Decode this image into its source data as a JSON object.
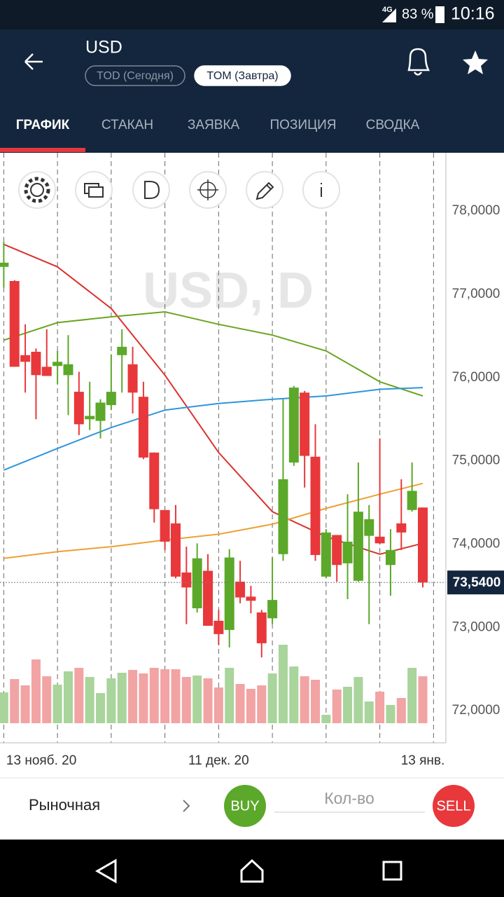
{
  "status_bar": {
    "network": "4G",
    "battery": "83 %",
    "time": "10:16"
  },
  "header": {
    "title": "USD",
    "modes": [
      "TOD (Сегодня)",
      "TOM (Завтра)"
    ],
    "active_mode": 1
  },
  "tabs": {
    "items": [
      "ГРАФИК",
      "СТАКАН",
      "ЗАЯВКА",
      "ПОЗИЦИЯ",
      "СВОДКА"
    ],
    "active": 0
  },
  "chart_data": {
    "type": "candlestick",
    "watermark": "USD, D",
    "open": [
      77.33,
      77.16,
      76.27,
      76.31,
      76.13,
      76.14,
      76.03,
      75.83,
      75.5,
      75.48,
      75.67,
      76.27,
      76.16,
      75.77,
      75.1,
      74.41,
      74.25,
      73.66,
      73.23,
      73.68,
      73.08,
      72.97,
      73.55,
      73.37,
      73.18,
      73.11,
      73.88,
      74.98,
      75.82,
      75.05,
      73.61,
      74.11,
      73.77,
      73.56,
      74.1,
      74.09,
      73.75,
      74.25,
      74.41,
      74.44
    ],
    "high": [
      77.63,
      77.17,
      76.64,
      76.35,
      76.58,
      76.32,
      76.51,
      76.07,
      75.95,
      75.74,
      76.28,
      76.58,
      76.37,
      75.95,
      75.1,
      74.41,
      74.47,
      73.97,
      74.01,
      73.88,
      73.21,
      73.94,
      73.8,
      73.5,
      73.21,
      73.84,
      75.74,
      75.9,
      75.84,
      75.44,
      74.18,
      74.11,
      74.6,
      74.98,
      74.47,
      75.27,
      74.18,
      74.78,
      74.98,
      74.44
    ],
    "low": [
      77.08,
      76.13,
      75.82,
      75.5,
      76.02,
      75.92,
      75.55,
      75.31,
      75.37,
      75.27,
      75.61,
      75.82,
      75.57,
      75.02,
      74.26,
      73.93,
      73.59,
      73.04,
      73.18,
      73.02,
      72.79,
      72.76,
      73.29,
      73.17,
      72.64,
      73.04,
      73.8,
      74.94,
      74.68,
      73.8,
      73.59,
      73.55,
      73.34,
      73.55,
      73.04,
      74.0,
      73.38,
      73.93,
      74.39,
      73.48
    ],
    "close": [
      77.38,
      76.13,
      76.19,
      76.03,
      76.02,
      76.19,
      76.16,
      75.44,
      75.54,
      75.7,
      75.83,
      76.37,
      75.82,
      75.04,
      74.42,
      74.03,
      73.61,
      73.48,
      73.83,
      73.02,
      72.92,
      73.84,
      73.36,
      73.32,
      72.81,
      73.33,
      74.78,
      75.88,
      75.06,
      73.87,
      74.14,
      73.75,
      74.03,
      74.39,
      74.3,
      74.01,
      73.93,
      74.14,
      74.64,
      73.54
    ],
    "volume": [
      44,
      63,
      54,
      91,
      67,
      55,
      74,
      79,
      66,
      43,
      64,
      72,
      76,
      71,
      79,
      77,
      77,
      66,
      68,
      64,
      51,
      79,
      56,
      49,
      54,
      71,
      112,
      81,
      67,
      62,
      12,
      48,
      52,
      66,
      31,
      45,
      26,
      36,
      79,
      67
    ],
    "up_color": "#5ca82a",
    "down_color": "#e8383b",
    "up_volume_color": "#a9d49b",
    "down_volume_color": "#f2a3a3",
    "moving_averages": [
      {
        "color": "#d9332e",
        "x": [
          0,
          5,
          10,
          15,
          20,
          25,
          30,
          35,
          39
        ],
        "values": [
          77.6,
          77.33,
          76.83,
          76.03,
          75.1,
          74.39,
          74.09,
          73.88,
          74.01
        ]
      },
      {
        "color": "#6aa522",
        "x": [
          0,
          5,
          10,
          15,
          20,
          25,
          30,
          35,
          39
        ],
        "values": [
          76.45,
          76.66,
          76.73,
          76.79,
          76.64,
          76.51,
          76.32,
          75.95,
          75.78
        ]
      },
      {
        "color": "#2f95dc",
        "x": [
          0,
          5,
          10,
          15,
          20,
          25,
          30,
          35,
          39
        ],
        "values": [
          74.89,
          75.15,
          75.4,
          75.61,
          75.69,
          75.74,
          75.78,
          75.86,
          75.88
        ]
      },
      {
        "color": "#eba134",
        "x": [
          0,
          5,
          10,
          15,
          20,
          25,
          30,
          35,
          39
        ],
        "values": [
          73.83,
          73.91,
          73.97,
          74.05,
          74.12,
          74.24,
          74.43,
          74.6,
          74.73
        ]
      }
    ],
    "xlim": [
      -0.35,
      41.15
    ],
    "xgrid": [
      0,
      5,
      10,
      15,
      20,
      25,
      30,
      35,
      40
    ],
    "xticks": [
      {
        "value": 3.5,
        "label": "13 нояб. 20"
      },
      {
        "value": 20,
        "label": "11 дек. 20"
      },
      {
        "value": 39,
        "label": "13 янв."
      }
    ],
    "ylim": [
      71.85,
      78.7
    ],
    "yticks": [
      {
        "value": 72,
        "label": "72,0000"
      },
      {
        "value": 73,
        "label": "73,0000"
      },
      {
        "value": 74,
        "label": "74,0000"
      },
      {
        "value": 75,
        "label": "75,0000"
      },
      {
        "value": 76,
        "label": "76,0000"
      },
      {
        "value": 77,
        "label": "77,0000"
      },
      {
        "value": 78,
        "label": "78,0000"
      }
    ],
    "last_price": {
      "value": 73.54,
      "label": "73,5400"
    }
  },
  "order_bar": {
    "order_type": "Рыночная",
    "buy": "BUY",
    "quantity_placeholder": "Кол-во",
    "sell": "SELL"
  }
}
